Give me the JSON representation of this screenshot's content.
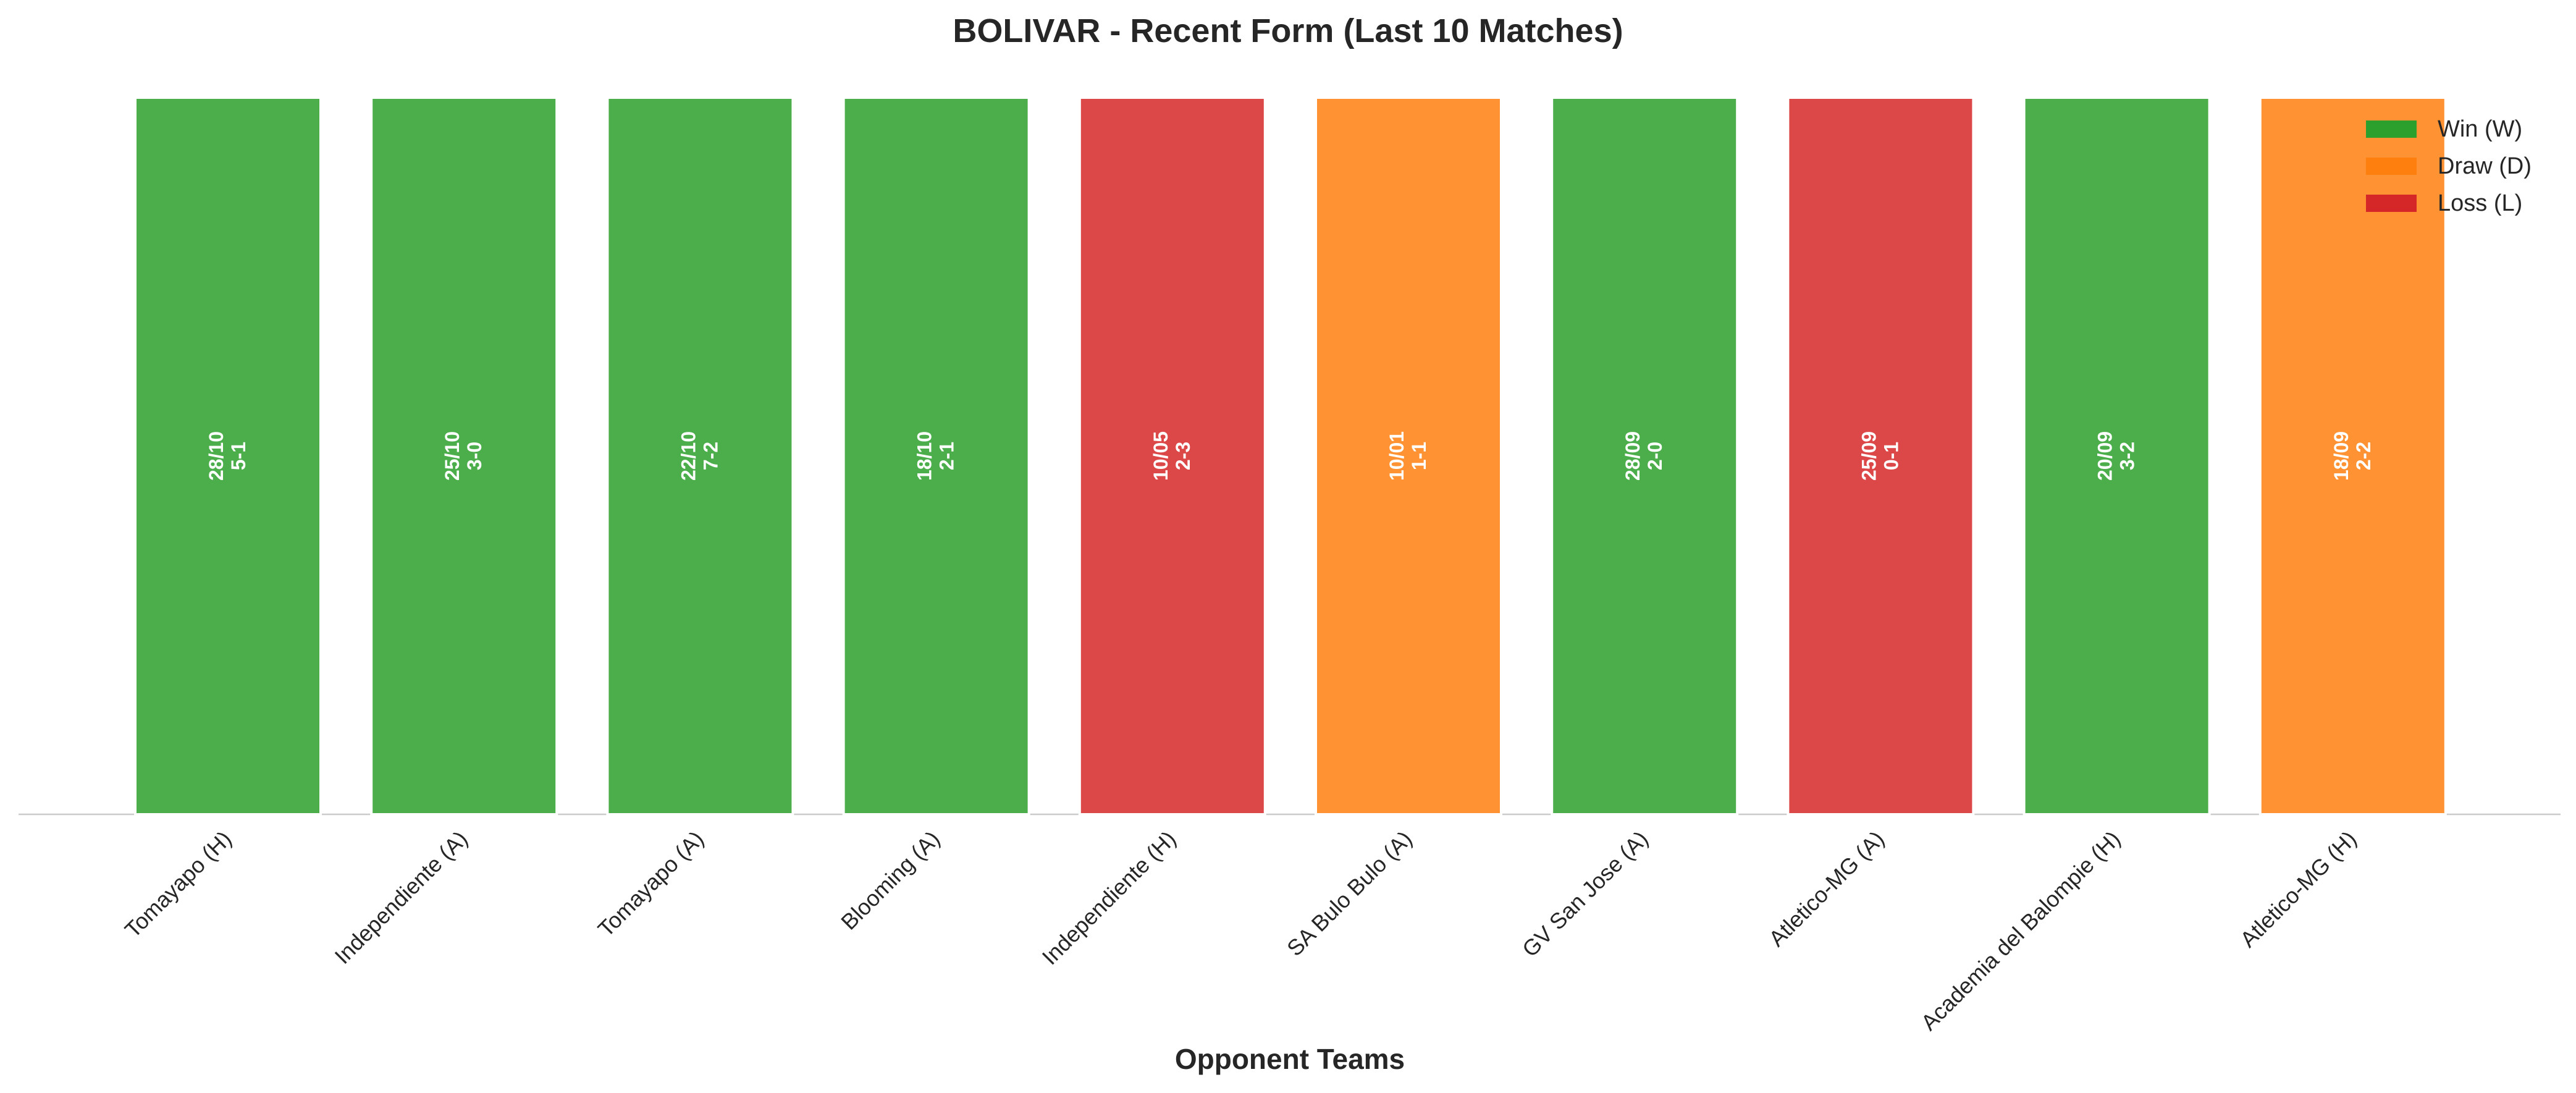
{
  "chart_data": {
    "type": "bar",
    "title": "BOLIVAR - Recent Form (Last 10 Matches)",
    "xlabel": "Opponent Teams",
    "ylabel": "",
    "categories": [
      "Tomayapo (H)",
      "Independiente (A)",
      "Tomayapo (A)",
      "Blooming (A)",
      "Independiente (H)",
      "SA Bulo Bulo (A)",
      "GV San Jose (A)",
      "Atletico-MG (A)",
      "Academia del Balompie (H)",
      "Atletico-MG (H)"
    ],
    "values": [
      1,
      1,
      1,
      1,
      1,
      1,
      1,
      1,
      1,
      1
    ],
    "results": [
      "W",
      "W",
      "W",
      "W",
      "L",
      "D",
      "W",
      "L",
      "W",
      "D"
    ],
    "dates": [
      "28/10",
      "25/10",
      "22/10",
      "18/10",
      "10/05",
      "10/01",
      "28/09",
      "25/09",
      "20/09",
      "18/09"
    ],
    "scores": [
      "5-1",
      "3-0",
      "7-2",
      "2-1",
      "2-3",
      "1-1",
      "2-0",
      "0-1",
      "3-2",
      "2-2"
    ],
    "ylim": [
      0,
      1
    ],
    "grid": false,
    "legend": {
      "placement": "top-right",
      "entries": [
        {
          "key": "W",
          "label": "Win (W)",
          "color": "#2ca02c"
        },
        {
          "key": "D",
          "label": "Draw (D)",
          "color": "#ff7f0e"
        },
        {
          "key": "L",
          "label": "Loss (L)",
          "color": "#d62728"
        }
      ]
    }
  }
}
